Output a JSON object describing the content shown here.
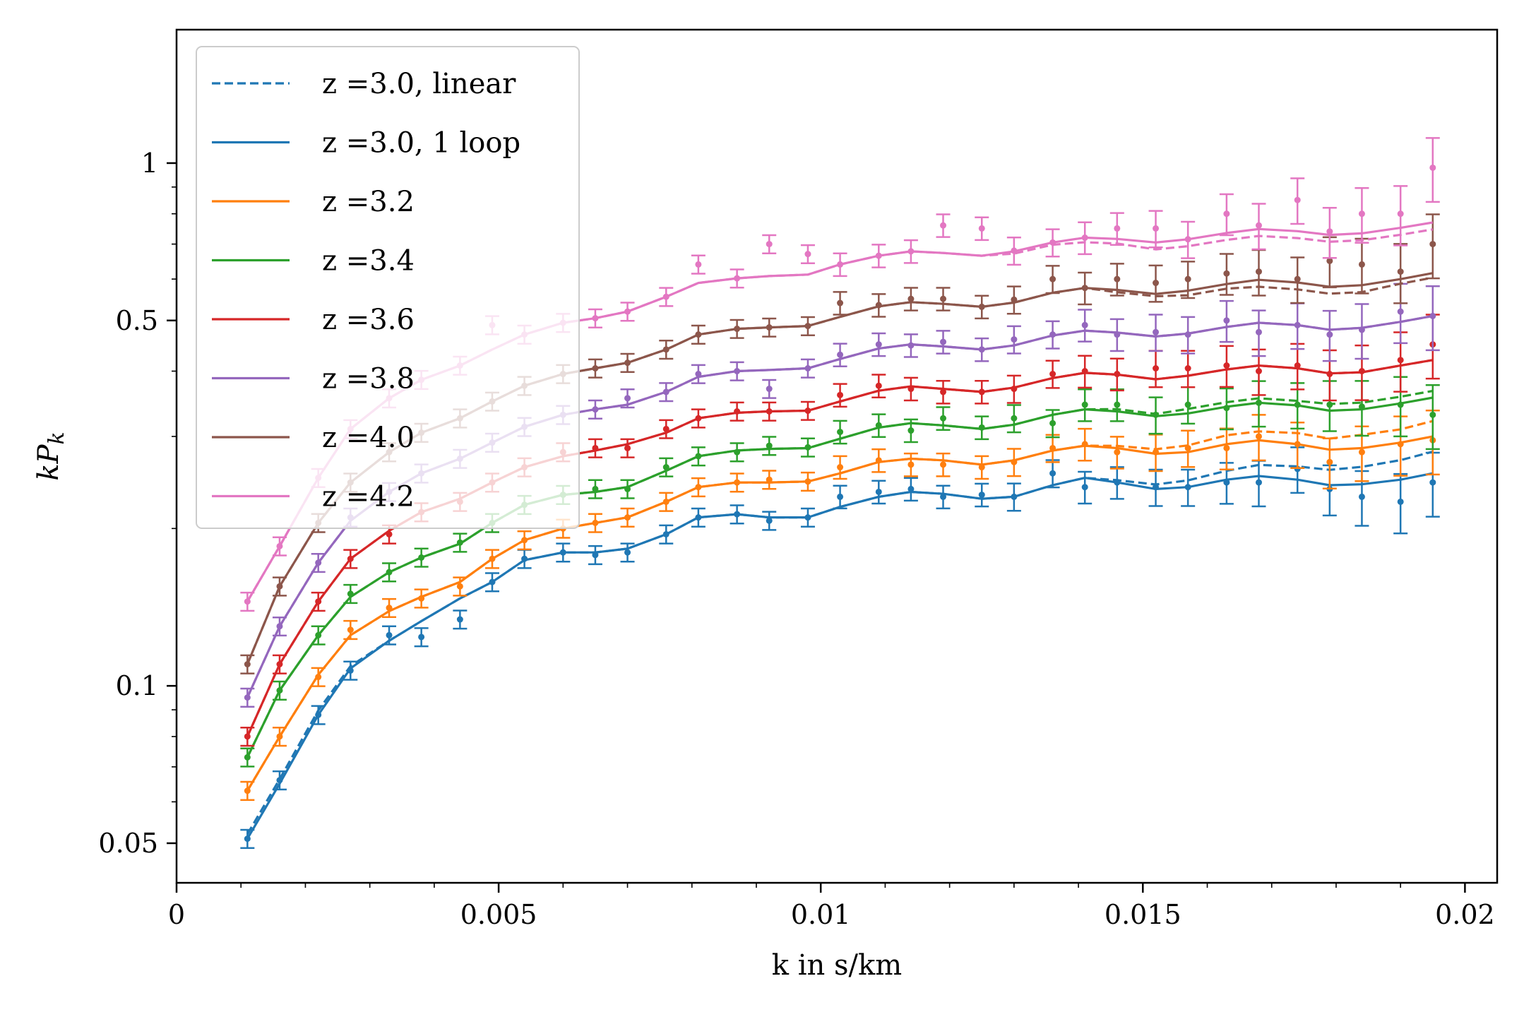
{
  "chart_data": {
    "type": "line",
    "title": "",
    "xlabel": "k in s/km",
    "ylabel": "kP_k",
    "ylabel_parts": {
      "main": "kP",
      "sub": "k"
    },
    "yscale": "log",
    "xlim": [
      0,
      0.0205
    ],
    "ylim": [
      0.042,
      1.8
    ],
    "x_ticks": [
      0,
      0.005,
      0.01,
      0.015,
      0.02
    ],
    "x_tick_labels": [
      "0",
      "0.005",
      "0.01",
      "0.015",
      "0.02"
    ],
    "y_ticks": [
      0.05,
      0.1,
      0.5,
      1
    ],
    "y_tick_labels": [
      "0.05",
      "0.1",
      "0.5",
      "1"
    ],
    "legend_position": "top-left",
    "legend": [
      {
        "label": "z =3.0, linear",
        "color": "#1f77b4",
        "style": "dashed"
      },
      {
        "label": "z =3.0, 1 loop",
        "color": "#1f77b4",
        "style": "solid"
      },
      {
        "label": "z =3.2",
        "color": "#ff7f0e",
        "style": "solid"
      },
      {
        "label": "z =3.4",
        "color": "#2ca02c",
        "style": "solid"
      },
      {
        "label": "z =3.6",
        "color": "#d62728",
        "style": "solid"
      },
      {
        "label": "z =3.8",
        "color": "#9467bd",
        "style": "solid"
      },
      {
        "label": "z =4.0",
        "color": "#8c564b",
        "style": "solid"
      },
      {
        "label": "z =4.2",
        "color": "#e377c2",
        "style": "solid"
      }
    ],
    "k": [
      0.0011,
      0.0016,
      0.0022,
      0.0027,
      0.0033,
      0.0038,
      0.0044,
      0.0049,
      0.0054,
      0.006,
      0.0065,
      0.007,
      0.0076,
      0.0081,
      0.0087,
      0.0092,
      0.0098,
      0.0103,
      0.0109,
      0.0114,
      0.0119,
      0.0125,
      0.013,
      0.0136,
      0.0141,
      0.0146,
      0.0152,
      0.0157,
      0.0163,
      0.0168,
      0.0174,
      0.0179,
      0.0184,
      0.019,
      0.0195
    ],
    "series": [
      {
        "z": "3.0",
        "color": "#1f77b4",
        "model": [
          0.051,
          0.065,
          0.088,
          0.108,
          0.122,
          0.133,
          0.147,
          0.158,
          0.174,
          0.18,
          0.18,
          0.183,
          0.195,
          0.21,
          0.213,
          0.21,
          0.21,
          0.22,
          0.23,
          0.235,
          0.233,
          0.228,
          0.23,
          0.242,
          0.25,
          0.245,
          0.238,
          0.24,
          0.248,
          0.252,
          0.248,
          0.242,
          0.243,
          0.248,
          0.255
        ],
        "linear_scale": [
          1.02,
          1.02,
          1.02,
          1.01,
          1.0,
          1.0,
          1.0,
          1.0,
          1.0,
          1.0,
          1.0,
          1.0,
          1.0,
          1.0,
          1.0,
          1.0,
          1.0,
          1.0,
          1.0,
          1.0,
          1.0,
          1.0,
          1.0,
          1.0,
          1.0,
          1.01,
          1.02,
          1.03,
          1.04,
          1.05,
          1.06,
          1.07,
          1.08,
          1.09,
          1.1
        ],
        "data": [
          0.051,
          0.066,
          0.088,
          0.107,
          0.125,
          0.124,
          0.134,
          0.158,
          0.175,
          0.18,
          0.178,
          0.18,
          0.195,
          0.21,
          0.213,
          0.207,
          0.21,
          0.23,
          0.235,
          0.238,
          0.23,
          0.232,
          0.23,
          0.255,
          0.24,
          0.245,
          0.24,
          0.24,
          0.245,
          0.245,
          0.26,
          0.238,
          0.23,
          0.225,
          0.245
        ],
        "err": [
          0.04,
          0.04,
          0.04,
          0.04,
          0.04,
          0.04,
          0.04,
          0.04,
          0.04,
          0.04,
          0.04,
          0.04,
          0.04,
          0.04,
          0.04,
          0.04,
          0.04,
          0.05,
          0.05,
          0.05,
          0.05,
          0.05,
          0.06,
          0.06,
          0.07,
          0.07,
          0.08,
          0.08,
          0.09,
          0.1,
          0.1,
          0.11,
          0.12,
          0.13,
          0.14
        ]
      },
      {
        "z": "3.2",
        "color": "#ff7f0e",
        "model": [
          0.063,
          0.08,
          0.105,
          0.125,
          0.139,
          0.148,
          0.158,
          0.175,
          0.19,
          0.2,
          0.205,
          0.21,
          0.225,
          0.24,
          0.245,
          0.245,
          0.246,
          0.255,
          0.268,
          0.272,
          0.27,
          0.265,
          0.27,
          0.282,
          0.288,
          0.285,
          0.278,
          0.28,
          0.29,
          0.295,
          0.29,
          0.283,
          0.285,
          0.292,
          0.3
        ],
        "linear_scale": [
          1.0,
          1.0,
          1.0,
          1.0,
          1.0,
          1.0,
          1.0,
          1.0,
          1.0,
          1.0,
          1.0,
          1.0,
          1.0,
          1.0,
          1.0,
          1.0,
          1.0,
          1.0,
          1.0,
          1.0,
          1.0,
          1.0,
          1.0,
          1.0,
          1.0,
          1.01,
          1.02,
          1.03,
          1.04,
          1.04,
          1.05,
          1.05,
          1.06,
          1.06,
          1.07
        ],
        "data": [
          0.063,
          0.08,
          0.104,
          0.128,
          0.141,
          0.147,
          0.155,
          0.175,
          0.19,
          0.2,
          0.205,
          0.21,
          0.225,
          0.24,
          0.245,
          0.248,
          0.246,
          0.262,
          0.27,
          0.265,
          0.265,
          0.262,
          0.268,
          0.285,
          0.29,
          0.28,
          0.28,
          0.285,
          0.285,
          0.3,
          0.29,
          0.268,
          0.28,
          0.29,
          0.295
        ],
        "err": [
          0.04,
          0.04,
          0.04,
          0.04,
          0.04,
          0.04,
          0.04,
          0.04,
          0.04,
          0.04,
          0.04,
          0.04,
          0.04,
          0.04,
          0.04,
          0.04,
          0.04,
          0.05,
          0.05,
          0.05,
          0.05,
          0.05,
          0.06,
          0.06,
          0.07,
          0.07,
          0.08,
          0.08,
          0.09,
          0.1,
          0.1,
          0.11,
          0.12,
          0.13,
          0.14
        ]
      },
      {
        "z": "3.4",
        "color": "#2ca02c",
        "model": [
          0.073,
          0.098,
          0.125,
          0.148,
          0.165,
          0.176,
          0.187,
          0.205,
          0.222,
          0.232,
          0.235,
          0.24,
          0.258,
          0.275,
          0.282,
          0.284,
          0.285,
          0.297,
          0.312,
          0.318,
          0.315,
          0.31,
          0.316,
          0.33,
          0.338,
          0.335,
          0.328,
          0.332,
          0.342,
          0.348,
          0.344,
          0.336,
          0.338,
          0.347,
          0.356
        ],
        "linear_scale": [
          1.0,
          1.0,
          1.0,
          1.0,
          1.0,
          1.0,
          1.0,
          1.0,
          1.0,
          1.0,
          1.0,
          1.0,
          1.0,
          1.0,
          1.0,
          1.0,
          1.0,
          1.0,
          1.0,
          1.0,
          1.0,
          1.0,
          1.0,
          1.0,
          1.0,
          1.01,
          1.01,
          1.02,
          1.02,
          1.02,
          1.02,
          1.03,
          1.03,
          1.03,
          1.03
        ],
        "data": [
          0.073,
          0.098,
          0.125,
          0.15,
          0.165,
          0.176,
          0.188,
          0.205,
          0.222,
          0.232,
          0.238,
          0.238,
          0.262,
          0.275,
          0.28,
          0.288,
          0.286,
          0.306,
          0.315,
          0.308,
          0.325,
          0.312,
          0.325,
          0.318,
          0.345,
          0.345,
          0.33,
          0.345,
          0.34,
          0.348,
          0.345,
          0.345,
          0.342,
          0.345,
          0.33
        ],
        "err": [
          0.04,
          0.04,
          0.04,
          0.04,
          0.04,
          0.04,
          0.04,
          0.04,
          0.04,
          0.04,
          0.04,
          0.04,
          0.04,
          0.04,
          0.04,
          0.04,
          0.04,
          0.05,
          0.05,
          0.05,
          0.05,
          0.05,
          0.06,
          0.06,
          0.07,
          0.07,
          0.08,
          0.08,
          0.09,
          0.1,
          0.1,
          0.11,
          0.12,
          0.13,
          0.14
        ]
      },
      {
        "z": "3.6",
        "color": "#d62728",
        "model": [
          0.08,
          0.11,
          0.145,
          0.175,
          0.198,
          0.215,
          0.228,
          0.245,
          0.262,
          0.275,
          0.282,
          0.29,
          0.305,
          0.325,
          0.333,
          0.335,
          0.336,
          0.35,
          0.367,
          0.374,
          0.37,
          0.365,
          0.372,
          0.388,
          0.397,
          0.394,
          0.386,
          0.392,
          0.403,
          0.41,
          0.405,
          0.396,
          0.398,
          0.41,
          0.42
        ],
        "linear_scale": [
          1.0,
          1.0,
          1.0,
          1.0,
          1.0,
          1.0,
          1.0,
          1.0,
          1.0,
          1.0,
          1.0,
          1.0,
          1.0,
          1.0,
          1.0,
          1.0,
          1.0,
          1.0,
          1.0,
          1.0,
          1.0,
          1.0,
          1.0,
          1.0,
          1.0,
          1.0,
          1.0,
          1.0,
          1.0,
          1.0,
          1.0,
          1.0,
          1.0,
          1.0,
          1.0
        ],
        "data": [
          0.08,
          0.11,
          0.145,
          0.175,
          0.195,
          0.215,
          0.225,
          0.245,
          0.262,
          0.28,
          0.285,
          0.285,
          0.31,
          0.325,
          0.335,
          0.335,
          0.336,
          0.36,
          0.375,
          0.37,
          0.365,
          0.365,
          0.37,
          0.395,
          0.4,
          0.395,
          0.405,
          0.405,
          0.41,
          0.4,
          0.41,
          0.395,
          0.4,
          0.42,
          0.45
        ],
        "err": [
          0.04,
          0.04,
          0.04,
          0.04,
          0.04,
          0.04,
          0.04,
          0.04,
          0.04,
          0.04,
          0.04,
          0.04,
          0.04,
          0.04,
          0.04,
          0.04,
          0.04,
          0.05,
          0.05,
          0.05,
          0.05,
          0.05,
          0.06,
          0.06,
          0.07,
          0.07,
          0.08,
          0.08,
          0.09,
          0.1,
          0.1,
          0.11,
          0.12,
          0.13,
          0.14
        ]
      },
      {
        "z": "3.8",
        "color": "#9467bd",
        "model": [
          0.095,
          0.13,
          0.172,
          0.207,
          0.235,
          0.255,
          0.272,
          0.292,
          0.313,
          0.33,
          0.338,
          0.345,
          0.365,
          0.39,
          0.4,
          0.402,
          0.405,
          0.422,
          0.442,
          0.45,
          0.446,
          0.44,
          0.448,
          0.468,
          0.478,
          0.474,
          0.466,
          0.472,
          0.486,
          0.495,
          0.49,
          0.48,
          0.484,
          0.497,
          0.51
        ],
        "linear_scale": [
          1.0,
          1.0,
          1.0,
          1.0,
          1.0,
          1.0,
          1.0,
          1.0,
          1.0,
          1.0,
          1.0,
          1.0,
          1.0,
          1.0,
          1.0,
          1.0,
          1.0,
          1.0,
          1.0,
          1.0,
          1.0,
          1.0,
          1.0,
          1.0,
          1.0,
          1.0,
          1.0,
          1.0,
          1.0,
          1.0,
          1.0,
          1.0,
          1.0,
          1.0,
          1.0
        ],
        "data": [
          0.095,
          0.13,
          0.172,
          0.21,
          0.235,
          0.255,
          0.272,
          0.292,
          0.313,
          0.33,
          0.338,
          0.355,
          0.365,
          0.395,
          0.4,
          0.37,
          0.405,
          0.43,
          0.45,
          0.448,
          0.455,
          0.44,
          0.46,
          0.47,
          0.49,
          0.47,
          0.475,
          0.47,
          0.5,
          0.475,
          0.49,
          0.47,
          0.48,
          0.52,
          0.51
        ],
        "err": [
          0.04,
          0.04,
          0.04,
          0.04,
          0.04,
          0.04,
          0.04,
          0.04,
          0.04,
          0.04,
          0.04,
          0.04,
          0.04,
          0.04,
          0.04,
          0.04,
          0.04,
          0.05,
          0.05,
          0.05,
          0.05,
          0.05,
          0.06,
          0.06,
          0.07,
          0.07,
          0.08,
          0.08,
          0.09,
          0.1,
          0.1,
          0.11,
          0.12,
          0.13,
          0.14
        ]
      },
      {
        "z": "4.0",
        "color": "#8c564b",
        "model": [
          0.11,
          0.155,
          0.205,
          0.245,
          0.28,
          0.305,
          0.325,
          0.35,
          0.375,
          0.395,
          0.405,
          0.415,
          0.44,
          0.47,
          0.482,
          0.485,
          0.488,
          0.508,
          0.532,
          0.542,
          0.538,
          0.531,
          0.541,
          0.565,
          0.577,
          0.572,
          0.562,
          0.57,
          0.587,
          0.598,
          0.591,
          0.58,
          0.584,
          0.6,
          0.616
        ],
        "linear_scale": [
          1.0,
          1.0,
          1.0,
          1.0,
          1.0,
          1.0,
          1.0,
          1.0,
          1.0,
          1.0,
          1.0,
          1.0,
          1.0,
          1.0,
          1.0,
          1.0,
          1.0,
          1.0,
          1.0,
          1.0,
          1.0,
          1.0,
          1.0,
          1.0,
          1.0,
          0.99,
          0.99,
          0.98,
          0.98,
          0.97,
          0.97,
          0.97,
          0.97,
          0.98,
          0.98
        ],
        "data": [
          0.11,
          0.155,
          0.205,
          0.245,
          0.28,
          0.305,
          0.325,
          0.35,
          0.375,
          0.395,
          0.405,
          0.415,
          0.44,
          0.47,
          0.482,
          0.485,
          0.488,
          0.54,
          0.535,
          0.55,
          0.55,
          0.531,
          0.548,
          0.6,
          0.577,
          0.6,
          0.59,
          0.6,
          0.615,
          0.62,
          0.6,
          0.65,
          0.64,
          0.62,
          0.7
        ],
        "err": [
          0.04,
          0.04,
          0.04,
          0.04,
          0.04,
          0.04,
          0.04,
          0.04,
          0.04,
          0.04,
          0.04,
          0.04,
          0.04,
          0.04,
          0.04,
          0.04,
          0.04,
          0.05,
          0.05,
          0.05,
          0.05,
          0.05,
          0.06,
          0.06,
          0.07,
          0.07,
          0.08,
          0.08,
          0.09,
          0.1,
          0.1,
          0.11,
          0.12,
          0.13,
          0.14
        ]
      },
      {
        "z": "4.2",
        "color": "#e377c2",
        "model": [
          0.145,
          0.185,
          0.25,
          0.31,
          0.355,
          0.385,
          0.41,
          0.44,
          0.47,
          0.495,
          0.505,
          0.52,
          0.555,
          0.59,
          0.602,
          0.608,
          0.612,
          0.64,
          0.665,
          0.678,
          0.673,
          0.665,
          0.678,
          0.705,
          0.72,
          0.716,
          0.705,
          0.715,
          0.735,
          0.748,
          0.741,
          0.729,
          0.734,
          0.752,
          0.77
        ],
        "linear_scale": [
          1.0,
          1.0,
          1.0,
          1.0,
          1.0,
          1.0,
          1.0,
          1.0,
          1.0,
          1.0,
          1.0,
          1.0,
          1.0,
          1.0,
          1.0,
          1.0,
          1.0,
          1.0,
          1.0,
          1.0,
          1.0,
          1.0,
          0.99,
          0.99,
          0.98,
          0.98,
          0.97,
          0.97,
          0.97,
          0.97,
          0.97,
          0.97,
          0.97,
          0.97,
          0.97
        ],
        "data": [
          0.145,
          0.185,
          0.25,
          0.31,
          0.355,
          0.385,
          0.41,
          0.49,
          0.47,
          0.495,
          0.505,
          0.52,
          0.555,
          0.64,
          0.602,
          0.7,
          0.67,
          0.64,
          0.665,
          0.678,
          0.76,
          0.75,
          0.68,
          0.705,
          0.72,
          0.75,
          0.75,
          0.715,
          0.8,
          0.76,
          0.85,
          0.74,
          0.8,
          0.8,
          0.98
        ],
        "err": [
          0.04,
          0.04,
          0.04,
          0.04,
          0.04,
          0.04,
          0.04,
          0.04,
          0.04,
          0.04,
          0.04,
          0.04,
          0.04,
          0.04,
          0.04,
          0.04,
          0.04,
          0.05,
          0.05,
          0.05,
          0.05,
          0.05,
          0.06,
          0.06,
          0.07,
          0.07,
          0.08,
          0.08,
          0.09,
          0.1,
          0.1,
          0.11,
          0.12,
          0.13,
          0.14
        ]
      }
    ]
  }
}
